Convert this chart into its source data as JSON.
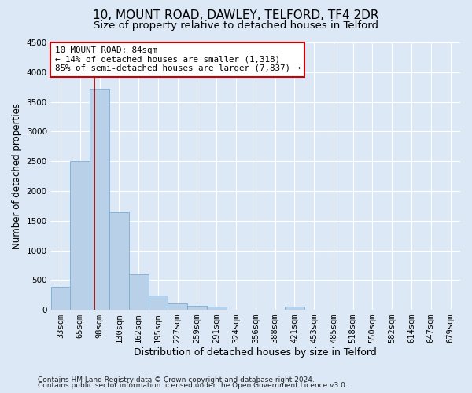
{
  "title1": "10, MOUNT ROAD, DAWLEY, TELFORD, TF4 2DR",
  "title2": "Size of property relative to detached houses in Telford",
  "xlabel": "Distribution of detached houses by size in Telford",
  "ylabel": "Number of detached properties",
  "footnote1": "Contains HM Land Registry data © Crown copyright and database right 2024.",
  "footnote2": "Contains public sector information licensed under the Open Government Licence v3.0.",
  "bar_labels": [
    "33sqm",
    "65sqm",
    "98sqm",
    "130sqm",
    "162sqm",
    "195sqm",
    "227sqm",
    "259sqm",
    "291sqm",
    "324sqm",
    "356sqm",
    "388sqm",
    "421sqm",
    "453sqm",
    "485sqm",
    "518sqm",
    "550sqm",
    "582sqm",
    "614sqm",
    "647sqm",
    "679sqm"
  ],
  "bar_values": [
    380,
    2500,
    3720,
    1640,
    600,
    245,
    110,
    65,
    50,
    0,
    0,
    0,
    60,
    0,
    0,
    0,
    0,
    0,
    0,
    0,
    0
  ],
  "bar_color": "#b8d0e8",
  "bar_edge_color": "#7aadd4",
  "vline_x_index": 1.72,
  "vline_color": "#8b0000",
  "annotation_text": "10 MOUNT ROAD: 84sqm\n← 14% of detached houses are smaller (1,318)\n85% of semi-detached houses are larger (7,837) →",
  "annotation_box_color": "white",
  "annotation_box_edge": "#cc0000",
  "ylim": [
    0,
    4500
  ],
  "yticks": [
    0,
    500,
    1000,
    1500,
    2000,
    2500,
    3000,
    3500,
    4000,
    4500
  ],
  "bg_color": "#dce8f5",
  "title1_fontsize": 11,
  "title2_fontsize": 9.5,
  "tick_fontsize": 7.5,
  "ylabel_fontsize": 8.5,
  "xlabel_fontsize": 9,
  "footnote_fontsize": 6.5
}
